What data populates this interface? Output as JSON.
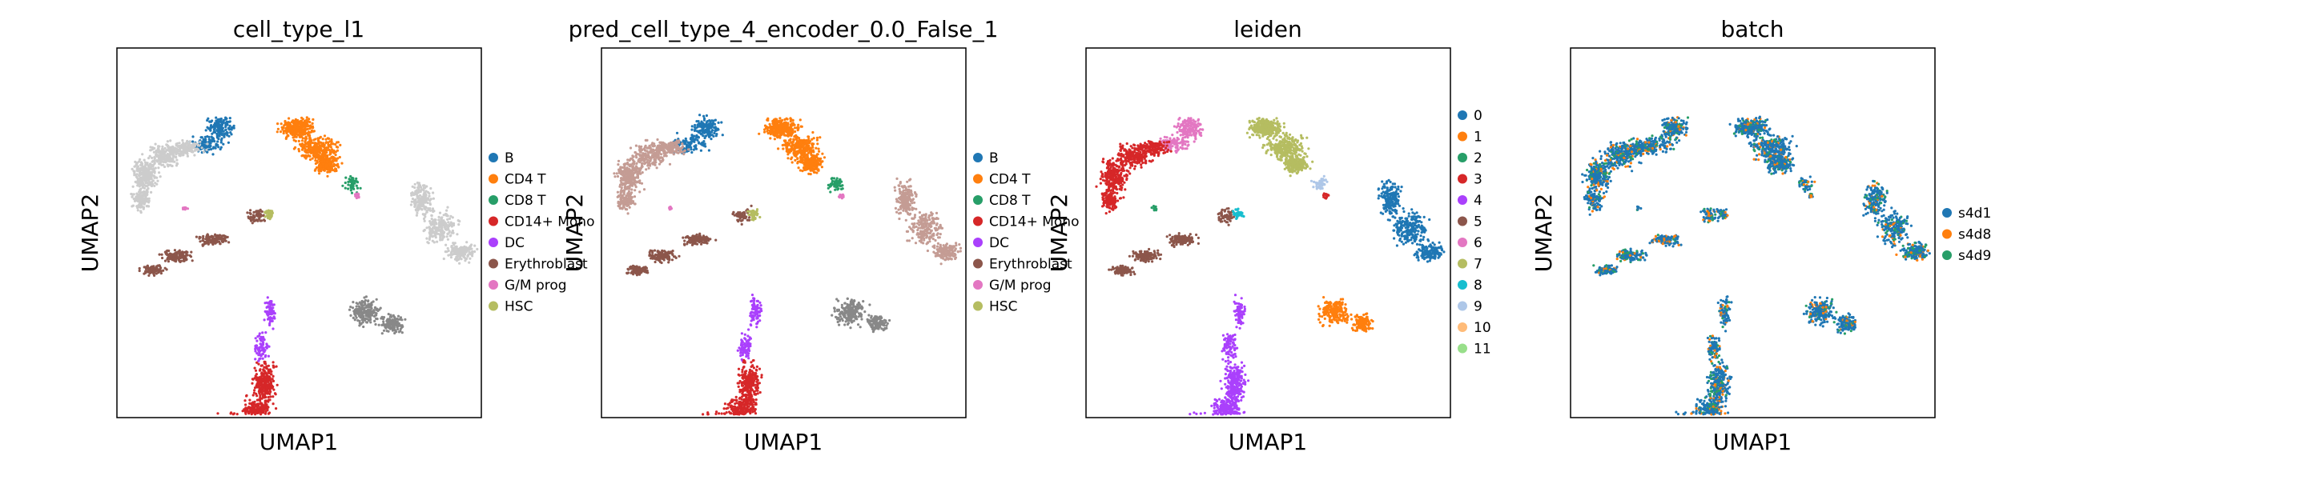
{
  "figure": {
    "panels": [
      {
        "title": "cell_type_l1",
        "xlabel": "UMAP1",
        "ylabel": "UMAP2",
        "legend": [
          {
            "label": "B",
            "color": "#1f77b4"
          },
          {
            "label": "CD4 T",
            "color": "#ff7f0e"
          },
          {
            "label": "CD8 T",
            "color": "#279e68"
          },
          {
            "label": "CD14+ Mono",
            "color": "#d62728"
          },
          {
            "label": "DC",
            "color": "#aa40fc"
          },
          {
            "label": "Erythroblast",
            "color": "#8c564b"
          },
          {
            "label": "G/M prog",
            "color": "#e377c2"
          },
          {
            "label": "HSC",
            "color": "#b5bd61"
          }
        ]
      },
      {
        "title": "pred_cell_type_4_encoder_0.0_False_1",
        "xlabel": "UMAP1",
        "ylabel": "UMAP2",
        "legend": [
          {
            "label": "B",
            "color": "#1f77b4"
          },
          {
            "label": "CD4 T",
            "color": "#ff7f0e"
          },
          {
            "label": "CD8 T",
            "color": "#279e68"
          },
          {
            "label": "CD14+ Mono",
            "color": "#d62728"
          },
          {
            "label": "DC",
            "color": "#aa40fc"
          },
          {
            "label": "Erythroblast",
            "color": "#8c564b"
          },
          {
            "label": "G/M prog",
            "color": "#e377c2"
          },
          {
            "label": "HSC",
            "color": "#b5bd61"
          }
        ]
      },
      {
        "title": "leiden",
        "xlabel": "UMAP1",
        "ylabel": "UMAP2",
        "legend": [
          {
            "label": "0",
            "color": "#1f77b4"
          },
          {
            "label": "1",
            "color": "#ff7f0e"
          },
          {
            "label": "2",
            "color": "#279e68"
          },
          {
            "label": "3",
            "color": "#d62728"
          },
          {
            "label": "4",
            "color": "#aa40fc"
          },
          {
            "label": "5",
            "color": "#8c564b"
          },
          {
            "label": "6",
            "color": "#e377c2"
          },
          {
            "label": "7",
            "color": "#b5bd61"
          },
          {
            "label": "8",
            "color": "#17becf"
          },
          {
            "label": "9",
            "color": "#aec7e8"
          },
          {
            "label": "10",
            "color": "#ffbb78"
          },
          {
            "label": "11",
            "color": "#98df8a"
          }
        ]
      },
      {
        "title": "batch",
        "xlabel": "UMAP1",
        "ylabel": "UMAP2",
        "legend": [
          {
            "label": "s4d1",
            "color": "#1f77b4"
          },
          {
            "label": "s4d8",
            "color": "#ff7f0e"
          },
          {
            "label": "s4d9",
            "color": "#279e68"
          }
        ]
      }
    ]
  },
  "chart_data": [
    {
      "type": "scatter",
      "title": "cell_type_l1",
      "xlabel": "UMAP1",
      "ylabel": "UMAP2",
      "legend_position": "right",
      "categories": [
        "B",
        "CD4 T",
        "CD8 T",
        "CD14+ Mono",
        "DC",
        "Erythroblast",
        "G/M prog",
        "HSC"
      ],
      "grid": false
    },
    {
      "type": "scatter",
      "title": "pred_cell_type_4_encoder_0.0_False_1",
      "xlabel": "UMAP1",
      "ylabel": "UMAP2",
      "legend_position": "right",
      "categories": [
        "B",
        "CD4 T",
        "CD8 T",
        "CD14+ Mono",
        "DC",
        "Erythroblast",
        "G/M prog",
        "HSC"
      ],
      "grid": false
    },
    {
      "type": "scatter",
      "title": "leiden",
      "xlabel": "UMAP1",
      "ylabel": "UMAP2",
      "legend_position": "right",
      "categories": [
        "0",
        "1",
        "2",
        "3",
        "4",
        "5",
        "6",
        "7",
        "8",
        "9",
        "10",
        "11"
      ],
      "grid": false
    },
    {
      "type": "scatter",
      "title": "batch",
      "xlabel": "UMAP1",
      "ylabel": "UMAP2",
      "legend_position": "right",
      "categories": [
        "s4d1",
        "s4d8",
        "s4d9"
      ],
      "grid": false
    }
  ]
}
